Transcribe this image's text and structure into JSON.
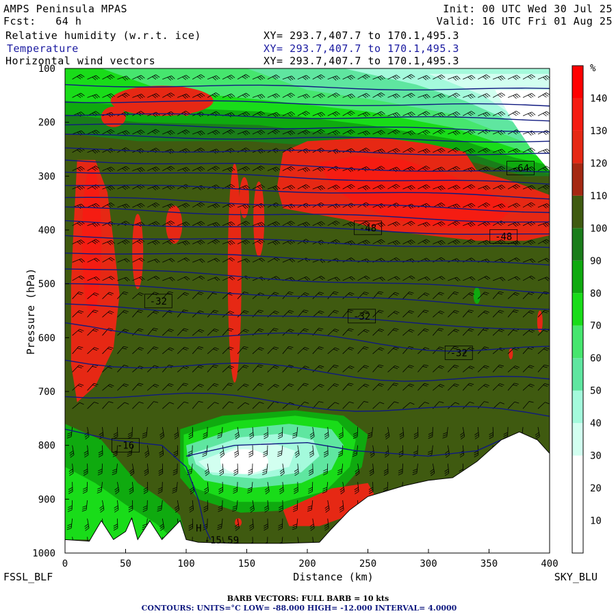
{
  "header": {
    "model": "AMPS Peninsula MPAS",
    "fcst": "Fcst:   64 h",
    "init": "Init: 00 UTC Wed 30 Jul 25",
    "valid": "Valid: 16 UTC Fri 01 Aug 25",
    "fields": [
      {
        "name": "Relative humidity (w.r.t. ice)",
        "xy": "XY= 293.7,407.7 to 170.1,495.3"
      },
      {
        "name": "Temperature",
        "xy": "XY= 293.7,407.7 to 170.1,495.3"
      },
      {
        "name": "Horizontal wind vectors",
        "xy": "XY= 293.7,407.7 to 170.1,495.3"
      }
    ]
  },
  "footer": {
    "left": "FSSL_BLF",
    "right": "SKY_BLU",
    "barb": "BARB VECTORS:  FULL BARB = 10 kts",
    "contours": "CONTOURS:  UNITS=°C  LOW= -88.000      HIGH= -12.000      INTERVAL=    4.0000"
  },
  "colors": {
    "rh_0_10": "#ffffff",
    "rh_10_20": "#ffffff",
    "rh_20_30": "#ffffff",
    "rh_30_40": "#d2fff0",
    "rh_40_50": "#a4fadc",
    "rh_50_60": "#5fe6a0",
    "rh_60_70": "#46e66e",
    "rh_70_80": "#19dc19",
    "rh_80_90": "#0faa0f",
    "rh_90_100": "#1a7d1a",
    "rh_100_110": "#3f5a10",
    "rh_110_120": "#a52812",
    "rh_120_130": "#e62814",
    "rh_130_140": "#f51c12",
    "rh_140_150": "#ff0000",
    "contour": "#101a80"
  },
  "chart_data": {
    "type": "heatmap",
    "xlabel": "Distance (km)",
    "ylabel": "Pressure (hPa)",
    "xlim": [
      0,
      400
    ],
    "ylim": [
      1000,
      100
    ],
    "x_ticks": [
      0,
      50,
      100,
      150,
      200,
      250,
      300,
      350,
      400
    ],
    "y_ticks": [
      100,
      200,
      300,
      400,
      500,
      600,
      700,
      800,
      900,
      1000
    ],
    "colorbar": {
      "unit": "%",
      "levels": [
        0,
        10,
        20,
        30,
        40,
        50,
        60,
        70,
        80,
        90,
        100,
        110,
        120,
        130,
        140,
        150
      ],
      "labels": [
        "10",
        "20",
        "30",
        "40",
        "50",
        "60",
        "70",
        "80",
        "90",
        "100",
        "110",
        "120",
        "130",
        "140"
      ]
    },
    "terrain": [
      [
        0,
        975
      ],
      [
        20,
        978
      ],
      [
        30,
        940
      ],
      [
        40,
        975
      ],
      [
        50,
        960
      ],
      [
        55,
        935
      ],
      [
        60,
        975
      ],
      [
        70,
        940
      ],
      [
        80,
        975
      ],
      [
        95,
        940
      ],
      [
        100,
        975
      ],
      [
        110,
        980
      ],
      [
        140,
        982
      ],
      [
        180,
        982
      ],
      [
        210,
        980
      ],
      [
        220,
        955
      ],
      [
        235,
        920
      ],
      [
        250,
        895
      ],
      [
        280,
        875
      ],
      [
        300,
        865
      ],
      [
        320,
        860
      ],
      [
        340,
        830
      ],
      [
        360,
        790
      ],
      [
        375,
        775
      ],
      [
        390,
        790
      ],
      [
        400,
        815
      ]
    ],
    "contour_labels": [
      {
        "text": "-64",
        "x": 376,
        "y": 285
      },
      {
        "text": "-48",
        "x": 250,
        "y": 396
      },
      {
        "text": "-48",
        "x": 362,
        "y": 412
      },
      {
        "text": "-32",
        "x": 77,
        "y": 532
      },
      {
        "text": "-32",
        "x": 245,
        "y": 560
      },
      {
        "text": "-32",
        "x": 325,
        "y": 628
      },
      {
        "text": "-16",
        "x": 50,
        "y": 800
      }
    ],
    "markers": [
      {
        "text": "H",
        "x": 108,
        "y": 960
      },
      {
        "text": "-15.59",
        "x": 115,
        "y": 982
      }
    ]
  }
}
